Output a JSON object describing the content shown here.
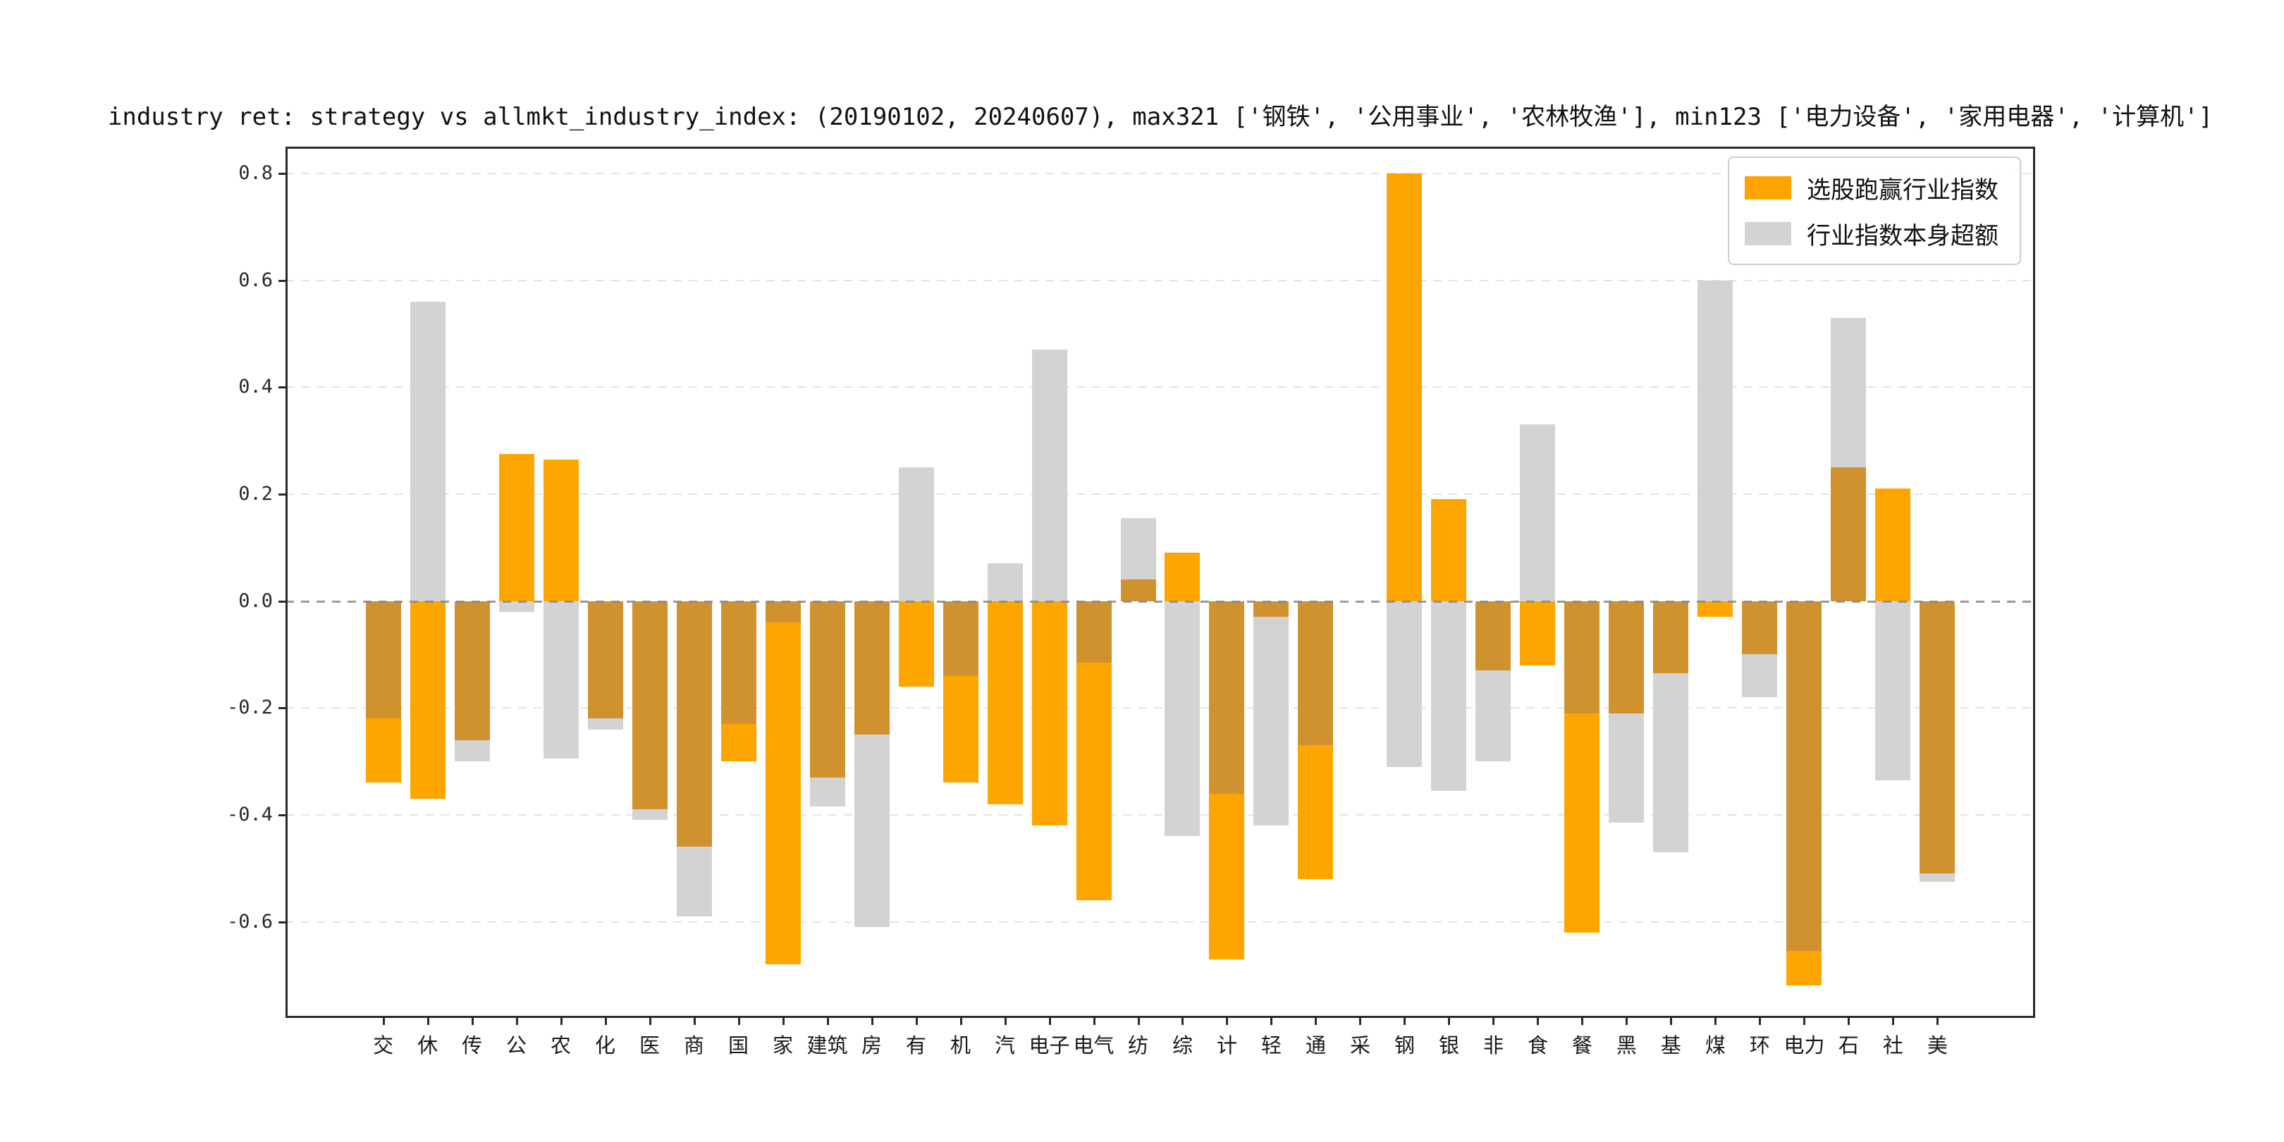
{
  "figure": {
    "title": "industry ret: strategy vs allmkt_industry_index: (20190102, 20240607), max321 ['钢铁', '公用事业', '农林牧渔'], min123 ['电力设备', '家用电器', '计算机']"
  },
  "legend": {
    "items": [
      {
        "label": "选股跑赢行业指数",
        "color": "#FFA500"
      },
      {
        "label": "行业指数本身超额",
        "color": "#D3D3D3"
      }
    ]
  },
  "chart_data": {
    "type": "bar",
    "title": "industry ret: strategy vs allmkt_industry_index: (20190102, 20240607), max321 ['钢铁', '公用事业', '农林牧渔'], min123 ['电力设备', '家用电器', '计算机']",
    "categories": [
      "交",
      "休",
      "传",
      "公",
      "农",
      "化",
      "医",
      "商",
      "国",
      "家",
      "建筑",
      "房",
      "有",
      "机",
      "汽",
      "电子",
      "电气",
      "纺",
      "综",
      "计",
      "轻",
      "通",
      "采",
      "钢",
      "银",
      "非",
      "食",
      "餐",
      "黑",
      "基",
      "煤",
      "环",
      "电力",
      "石",
      "社",
      "美"
    ],
    "series": [
      {
        "name": "选股跑赢行业指数",
        "color": "#FFA500",
        "values": [
          -0.34,
          -0.37,
          -0.26,
          0.275,
          0.265,
          -0.22,
          -0.39,
          -0.46,
          -0.3,
          -0.68,
          -0.33,
          -0.25,
          -0.16,
          -0.34,
          -0.38,
          -0.42,
          -0.56,
          0.04,
          0.09,
          -0.67,
          -0.03,
          -0.52,
          0.0,
          0.8,
          0.19,
          -0.13,
          -0.12,
          -0.62,
          -0.21,
          -0.135,
          -0.03,
          -0.1,
          -0.72,
          0.25,
          0.21,
          -0.51
        ]
      },
      {
        "name": "行业指数本身超额",
        "color": "#D3D3D3",
        "values": [
          -0.22,
          0.56,
          -0.3,
          -0.02,
          -0.295,
          -0.24,
          -0.41,
          -0.59,
          -0.23,
          -0.04,
          -0.385,
          -0.61,
          0.25,
          -0.14,
          0.07,
          0.47,
          -0.115,
          0.155,
          -0.44,
          -0.36,
          -0.42,
          -0.27,
          0.0,
          -0.31,
          -0.355,
          -0.3,
          0.33,
          -0.21,
          -0.415,
          -0.47,
          0.6,
          -0.18,
          -0.655,
          0.53,
          -0.335,
          -0.525
        ]
      }
    ],
    "overlap_color": "#D0922F",
    "ylim": [
      -0.78,
      0.85
    ],
    "yticks": [
      0.8,
      0.6,
      0.4,
      0.2,
      0.0,
      -0.2,
      -0.4,
      -0.6
    ],
    "ytick_labels": [
      "0.8",
      "0.6",
      "0.4",
      "0.2",
      "0.0",
      "-0.2",
      "-0.4",
      "-0.6"
    ],
    "xlabel": "",
    "ylabel": "",
    "grid": true,
    "legend_position": "upper right",
    "date_range": [
      "20190102",
      "20240607"
    ],
    "max3": [
      "钢铁",
      "公用事业",
      "农林牧渔"
    ],
    "min3": [
      "电力设备",
      "家用电器",
      "计算机"
    ]
  }
}
